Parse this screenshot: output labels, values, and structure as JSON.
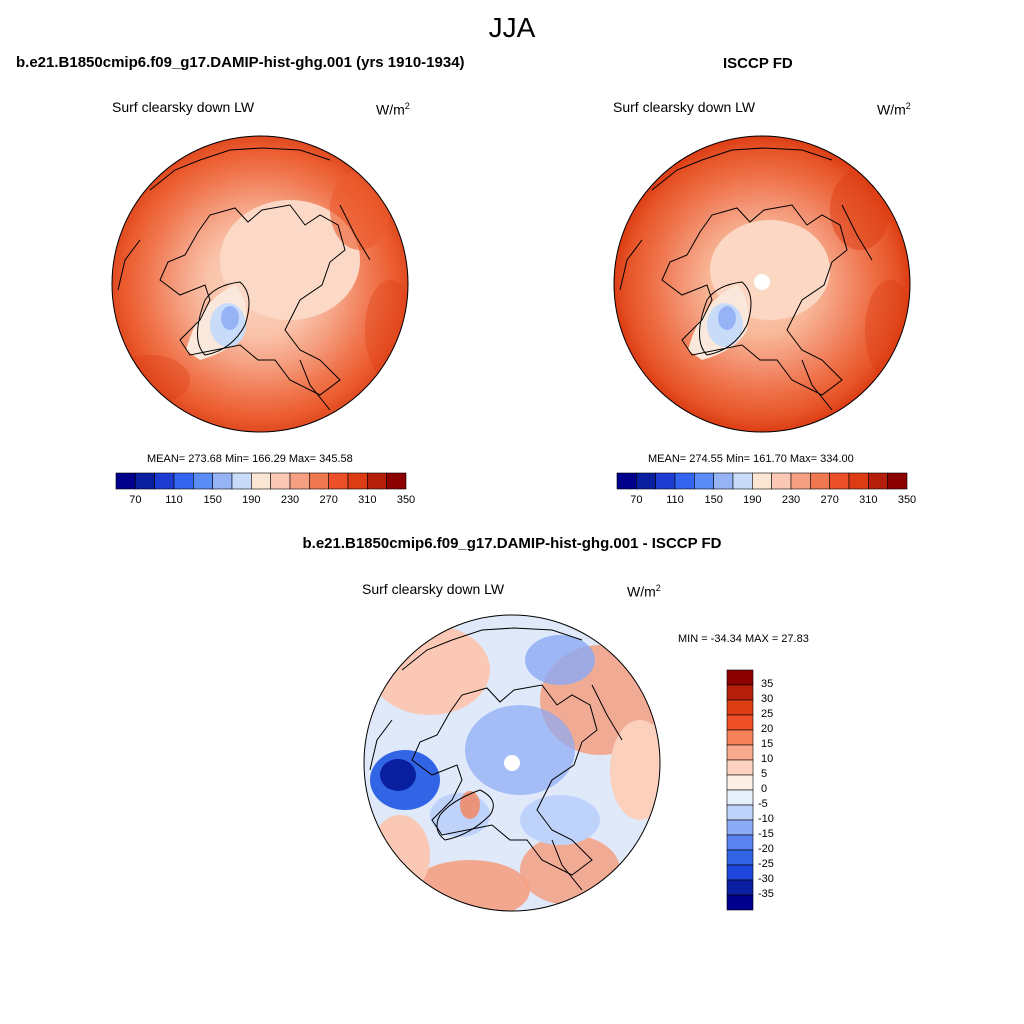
{
  "season_title": "JJA",
  "panels": {
    "model": {
      "title": "b.e21.B1850cmip6.f09_g17.DAMIP-hist-ghg.001 (yrs 1910-1934)",
      "variable": "Surf clearsky down LW",
      "units_base": "W/m",
      "units_exp": "2",
      "stats_text": "MEAN= 273.68  Min= 166.29  Max= 345.58",
      "mean": 273.68,
      "min": 166.29,
      "max": 345.58
    },
    "obs": {
      "title": "ISCCP FD",
      "variable": "Surf clearsky down LW",
      "units_base": "W/m",
      "units_exp": "2",
      "stats_text": "MEAN= 274.55  Min= 161.70  Max= 334.00",
      "mean": 274.55,
      "min": 161.7,
      "max": 334.0
    },
    "diff": {
      "title": "b.e21.B1850cmip6.f09_g17.DAMIP-hist-ghg.001 - ISCCP FD",
      "variable": "Surf clearsky down LW",
      "units_base": "W/m",
      "units_exp": "2",
      "stats_text": "MIN = -34.34 MAX =  27.83",
      "min": -34.34,
      "max": 27.83
    }
  },
  "abs_colorbar": {
    "colors": [
      "#00008c",
      "#0a1ea0",
      "#1e3cd2",
      "#3264f0",
      "#5a8cf5",
      "#96b4f5",
      "#c8dcfa",
      "#fae6d2",
      "#fac8b4",
      "#f5a082",
      "#f07850",
      "#eb5028",
      "#dc3c14",
      "#b41e0a",
      "#8c0000"
    ],
    "tick_labels": [
      "70",
      "110",
      "150",
      "190",
      "230",
      "270",
      "310",
      "350"
    ]
  },
  "diff_colorbar": {
    "colors": [
      "#8c0000",
      "#b41e0a",
      "#dc3c14",
      "#f05028",
      "#f5825a",
      "#faaa8c",
      "#fcd2be",
      "#fff0e6",
      "#e6f0fc",
      "#bed2fa",
      "#8caaf5",
      "#5a82f0",
      "#3264e6",
      "#1e46dc",
      "#0a1ea0",
      "#00008c"
    ],
    "tick_labels": [
      "35",
      "30",
      "25",
      "20",
      "15",
      "10",
      "5",
      "0",
      "-5",
      "-10",
      "-15",
      "-20",
      "-25",
      "-30",
      "-35"
    ]
  }
}
